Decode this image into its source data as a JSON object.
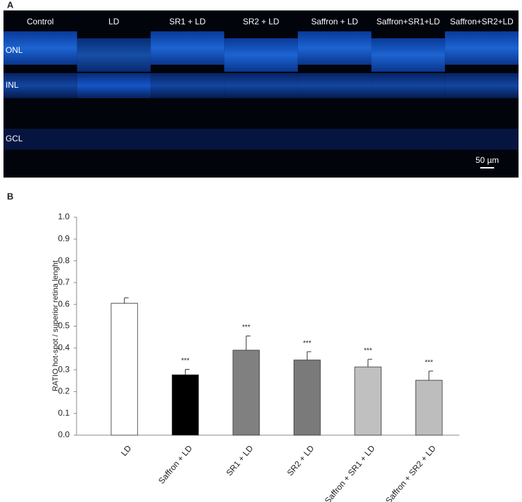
{
  "panel_a": {
    "label": "A",
    "columns": [
      "Control",
      "LD",
      "SR1 +  LD",
      "SR2 + LD",
      "Saffron + LD",
      "Saffron+SR1+LD",
      "Saffron+SR2+LD"
    ],
    "layers": [
      "ONL",
      "INL",
      "GCL"
    ],
    "scale_bar": "50 µm"
  },
  "panel_b_label": "B",
  "chart_data": {
    "type": "bar",
    "ylabel": "RATIO hot-spot / superior retina lenght",
    "categories": [
      "LD",
      "Saffron + LD",
      "SR1 + LD",
      "SR2 + LD",
      "Saffron + SR1 + LD",
      "Saffron + SR2 + LD"
    ],
    "values": [
      0.605,
      0.277,
      0.39,
      0.345,
      0.313,
      0.252
    ],
    "errors": [
      0.025,
      0.025,
      0.065,
      0.038,
      0.035,
      0.042
    ],
    "colors": [
      "#ffffff",
      "#000000",
      "#808080",
      "#7a7a7a",
      "#c0c0c0",
      "#bdbdbd"
    ],
    "significance": [
      null,
      "***",
      "***",
      "***",
      "***",
      "***"
    ],
    "ylim": [
      0,
      1
    ],
    "yticks": [
      {
        "value": 0,
        "label": "0.0"
      },
      0.1,
      0.2,
      0.3,
      0.4,
      0.5,
      0.6,
      0.7,
      0.8,
      0.9,
      {
        "value": 1,
        "label": "1.0"
      }
    ]
  }
}
